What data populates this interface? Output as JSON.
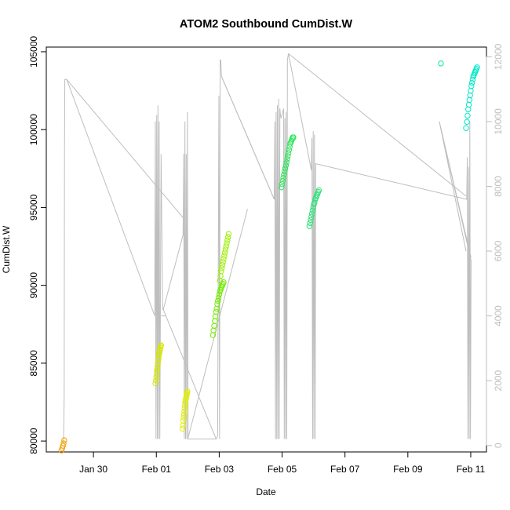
{
  "chart_data": {
    "type": "scatter",
    "title": "ATOM2 Southbound CumDist.W",
    "xlabel": "Date",
    "ylabel": "CumDist.W",
    "y2label": "",
    "x_unit": "days (relative to Jan 30)",
    "xlim": [
      -1.5,
      12.5
    ],
    "ylim": [
      79300,
      105300
    ],
    "y2lim": [
      -200,
      12300
    ],
    "x_ticks": [
      {
        "value": 0,
        "label": "Jan 30"
      },
      {
        "value": 2,
        "label": "Feb 01"
      },
      {
        "value": 4,
        "label": "Feb 03"
      },
      {
        "value": 6,
        "label": "Feb 05"
      },
      {
        "value": 8,
        "label": "Feb 07"
      },
      {
        "value": 10,
        "label": "Feb 09"
      },
      {
        "value": 12,
        "label": "Feb 11"
      }
    ],
    "y_ticks": [
      {
        "value": 80000,
        "label": "80000"
      },
      {
        "value": 85000,
        "label": "85000"
      },
      {
        "value": 90000,
        "label": "90000"
      },
      {
        "value": 95000,
        "label": "95000"
      },
      {
        "value": 100000,
        "label": "100000"
      },
      {
        "value": 105000,
        "label": "105000"
      }
    ],
    "y2_ticks": [
      {
        "value": 0,
        "label": "0"
      },
      {
        "value": 2000,
        "label": "2000"
      },
      {
        "value": 4000,
        "label": "4000"
      },
      {
        "value": 6000,
        "label": "6000"
      },
      {
        "value": 8000,
        "label": "8000"
      },
      {
        "value": 10000,
        "label": "10000"
      },
      {
        "value": 12000,
        "label": "12000"
      }
    ],
    "grid": false,
    "legend": "none",
    "line_color": "#bebebe",
    "line_series": {
      "axis": "right",
      "points": [
        [
          -0.95,
          100
        ],
        [
          -0.93,
          1500
        ],
        [
          -0.92,
          9000
        ],
        [
          -0.91,
          11300
        ],
        [
          -0.85,
          11300
        ],
        [
          1.95,
          4000
        ],
        [
          1.97,
          10000
        ],
        [
          1.99,
          200
        ],
        [
          2.01,
          10200
        ],
        [
          2.03,
          200
        ],
        [
          2.05,
          10500
        ],
        [
          2.07,
          200
        ],
        [
          2.09,
          10000
        ],
        [
          2.11,
          200
        ],
        [
          2.15,
          9000
        ],
        [
          2.2,
          4200
        ],
        [
          2.22,
          4200
        ],
        [
          2.85,
          6500
        ],
        [
          2.87,
          9000
        ],
        [
          2.89,
          200
        ],
        [
          2.91,
          10000
        ],
        [
          2.93,
          200
        ],
        [
          2.95,
          9000
        ],
        [
          2.97,
          200
        ],
        [
          2.99,
          10300
        ],
        [
          3.01,
          200
        ],
        [
          3.9,
          200
        ],
        [
          3.95,
          300
        ],
        [
          3.99,
          10800
        ],
        [
          4.01,
          200
        ],
        [
          4.03,
          11900
        ],
        [
          4.05,
          11900
        ],
        [
          4.07,
          11400
        ],
        [
          5.75,
          7600
        ],
        [
          5.77,
          10000
        ],
        [
          5.79,
          200
        ],
        [
          5.81,
          10300
        ],
        [
          5.83,
          200
        ],
        [
          5.85,
          10500
        ],
        [
          5.87,
          200
        ],
        [
          5.89,
          10700
        ],
        [
          5.91,
          200
        ],
        [
          5.93,
          10400
        ],
        [
          5.95,
          10200
        ],
        [
          5.97,
          10100
        ],
        [
          6.05,
          10400
        ],
        [
          6.07,
          200
        ],
        [
          6.09,
          10100
        ],
        [
          6.11,
          200
        ],
        [
          6.13,
          10300
        ],
        [
          6.15,
          200
        ],
        [
          6.17,
          11900
        ],
        [
          6.2,
          12100
        ],
        [
          6.93,
          8500
        ],
        [
          6.95,
          9500
        ],
        [
          6.97,
          200
        ],
        [
          6.99,
          9700
        ],
        [
          7.01,
          200
        ],
        [
          7.03,
          9600
        ],
        [
          7.05,
          200
        ],
        [
          7.07,
          8700
        ],
        [
          11.87,
          7600
        ],
        [
          11.89,
          8900
        ],
        [
          11.91,
          200
        ],
        [
          11.93,
          8600
        ],
        [
          11.95,
          200
        ],
        [
          11.97,
          10000
        ],
        [
          11.99,
          200
        ],
        [
          12.01,
          5700
        ],
        [
          11.0,
          10000
        ],
        [
          11.85,
          6000
        ]
      ],
      "segments": [
        [
          [
            -0.85,
            11300
          ],
          [
            2.88,
            7000
          ]
        ],
        [
          [
            2.22,
            4200
          ],
          [
            3.9,
            200
          ]
        ],
        [
          [
            4.07,
            11400
          ],
          [
            5.75,
            7600
          ]
        ],
        [
          [
            3.0,
            200
          ],
          [
            4.9,
            7300
          ]
        ],
        [
          [
            6.2,
            12100
          ],
          [
            11.85,
            7700
          ]
        ],
        [
          [
            11.0,
            10000
          ],
          [
            12.01,
            5800
          ]
        ],
        [
          [
            2.15,
            4000
          ],
          [
            2.3,
            4000
          ]
        ]
      ]
    },
    "scatter_series": [
      {
        "color": "#f0a000",
        "x": [
          -1.02,
          -0.99,
          -0.97,
          -0.95,
          -0.93
        ],
        "y": [
          79400,
          79550,
          79700,
          79850,
          80050
        ]
      },
      {
        "color": "#d6e800",
        "x": [
          1.97,
          1.99,
          2.0,
          2.01,
          2.02,
          2.03,
          2.04,
          2.05,
          2.06,
          2.07,
          2.08,
          2.09,
          2.1,
          2.11,
          2.12,
          2.13,
          2.14,
          2.15
        ],
        "y": [
          83700,
          83900,
          84100,
          84300,
          84500,
          84600,
          84800,
          85000,
          85200,
          85300,
          85500,
          85600,
          85700,
          85800,
          85900,
          86000,
          86100,
          86150
        ]
      },
      {
        "color": "#e0f000",
        "x": [
          2.83,
          2.85,
          2.86,
          2.87,
          2.88,
          2.89,
          2.9,
          2.91,
          2.92,
          2.93,
          2.94,
          2.95,
          2.96,
          2.97,
          2.98,
          2.99
        ],
        "y": [
          80800,
          81000,
          81300,
          81500,
          81700,
          81900,
          82100,
          82300,
          82500,
          82600,
          82700,
          82800,
          82900,
          83000,
          83100,
          83200
        ]
      },
      {
        "color": "#9cef00",
        "x": [
          4.02,
          4.04,
          4.06,
          4.08,
          4.1,
          4.12,
          4.14,
          4.16,
          4.18,
          4.2,
          4.22,
          4.24,
          4.26,
          4.28,
          4.3
        ],
        "y": [
          90300,
          90600,
          90900,
          91100,
          91300,
          91500,
          91700,
          91900,
          92100,
          92300,
          92500,
          92700,
          92900,
          93100,
          93300
        ]
      },
      {
        "color": "#72ed00",
        "x": [
          3.8,
          3.82,
          3.84,
          3.86,
          3.88,
          3.9,
          3.92,
          3.94,
          3.96,
          3.98,
          4.0,
          4.02,
          4.04,
          4.06,
          4.08,
          4.1,
          4.12,
          4.14
        ],
        "y": [
          86800,
          87100,
          87400,
          87700,
          88000,
          88300,
          88500,
          88800,
          89000,
          89200,
          89400,
          89600,
          89700,
          89800,
          89900,
          90000,
          90100,
          90200
        ]
      },
      {
        "color": "#2ee35a",
        "x": [
          5.98,
          6.0,
          6.02,
          6.04,
          6.06,
          6.08,
          6.1,
          6.12,
          6.14,
          6.16,
          6.18,
          6.2,
          6.22,
          6.24,
          6.26,
          6.28,
          6.3,
          6.32,
          6.34,
          6.36
        ],
        "y": [
          96300,
          96500,
          96700,
          96900,
          97100,
          97300,
          97500,
          97700,
          97900,
          98100,
          98300,
          98500,
          98700,
          98900,
          99100,
          99200,
          99300,
          99400,
          99500,
          99500
        ]
      },
      {
        "color": "#2ee37a",
        "x": [
          6.87,
          6.89,
          6.91,
          6.93,
          6.95,
          6.97,
          6.99,
          7.01,
          7.03,
          7.05,
          7.07,
          7.09,
          7.11,
          7.13,
          7.15,
          7.17
        ],
        "y": [
          93800,
          94000,
          94200,
          94400,
          94600,
          94800,
          95000,
          95200,
          95300,
          95500,
          95600,
          95700,
          95800,
          95900,
          96000,
          96100
        ]
      },
      {
        "color": "#00e8aa",
        "x": [
          11.05
        ],
        "y": [
          104250
        ]
      },
      {
        "color": "#00e8c8",
        "x": [
          11.85,
          11.88,
          11.9,
          11.92,
          11.94,
          11.96,
          11.98,
          12.0,
          12.02,
          12.04,
          12.06,
          12.08,
          12.1,
          12.12,
          12.14,
          12.16,
          12.18,
          12.2
        ],
        "y": [
          100100,
          100500,
          100900,
          101300,
          101600,
          101900,
          102200,
          102500,
          102800,
          103000,
          103200,
          103400,
          103500,
          103600,
          103700,
          103800,
          103900,
          104000
        ]
      }
    ]
  }
}
